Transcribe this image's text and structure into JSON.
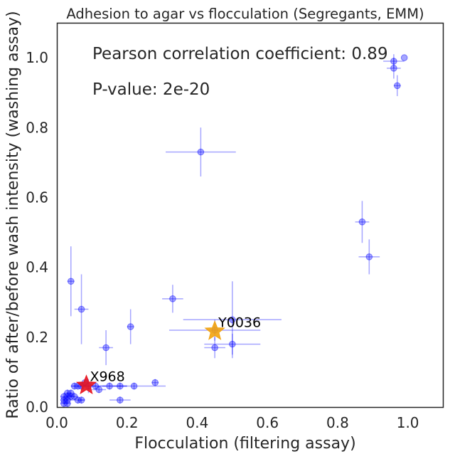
{
  "chart_data": {
    "type": "scatter",
    "title": "Adhesion to agar vs flocculation (Segregants, EMM)",
    "xlabel": "Flocculation (filtering assay)",
    "ylabel": "Ratio of after/before wash intensity (washing assay)",
    "xlim": [
      0,
      1.1
    ],
    "ylim": [
      0,
      1.1
    ],
    "xticks": [
      "0.0",
      "0.2",
      "0.4",
      "0.6",
      "0.8",
      "1.0"
    ],
    "yticks": [
      "0.0",
      "0.2",
      "0.4",
      "0.6",
      "0.8",
      "1.0"
    ],
    "grid": false,
    "annotations": {
      "pearson": "Pearson correlation coefficient: 0.89",
      "pvalue": "P-value: 2e-20"
    },
    "colors": {
      "points": "#0000ff",
      "highlight_x968": "#e8141f",
      "highlight_y0036": "#f2a30f"
    },
    "series": [
      {
        "points": [
          {
            "x": 0.99,
            "y": 1.0,
            "xerr": 0,
            "yerr": 0
          },
          {
            "x": 0.96,
            "y": 0.99,
            "xerr": 0.03,
            "yerr": 0.02
          },
          {
            "x": 0.96,
            "y": 0.97,
            "xerr": 0.02,
            "yerr": 0.03
          },
          {
            "x": 0.97,
            "y": 0.92,
            "xerr": 0.01,
            "yerr": 0.03
          },
          {
            "x": 0.41,
            "y": 0.73,
            "xerr": 0.1,
            "yerr": 0.07
          },
          {
            "x": 0.87,
            "y": 0.53,
            "xerr": 0.02,
            "yerr": 0.06
          },
          {
            "x": 0.89,
            "y": 0.43,
            "xerr": 0.03,
            "yerr": 0.05
          },
          {
            "x": 0.04,
            "y": 0.36,
            "xerr": 0.01,
            "yerr": 0.1
          },
          {
            "x": 0.33,
            "y": 0.31,
            "xerr": 0.03,
            "yerr": 0.04
          },
          {
            "x": 0.07,
            "y": 0.28,
            "xerr": 0.02,
            "yerr": 0.1
          },
          {
            "x": 0.5,
            "y": 0.25,
            "xerr": 0.14,
            "yerr": 0.11
          },
          {
            "x": 0.21,
            "y": 0.23,
            "xerr": 0.01,
            "yerr": 0.05
          },
          {
            "x": 0.14,
            "y": 0.17,
            "xerr": 0.02,
            "yerr": 0.05
          },
          {
            "x": 0.45,
            "y": 0.17,
            "xerr": 0.03,
            "yerr": 0.03
          },
          {
            "x": 0.5,
            "y": 0.18,
            "xerr": 0.08,
            "yerr": 0.03
          },
          {
            "x": 0.45,
            "y": 0.22,
            "xerr": 0.13,
            "yerr": 0.03
          },
          {
            "x": 0.28,
            "y": 0.07,
            "xerr": 0.01,
            "yerr": 0.01
          },
          {
            "x": 0.22,
            "y": 0.06,
            "xerr": 0.09,
            "yerr": 0.01
          },
          {
            "x": 0.18,
            "y": 0.02,
            "xerr": 0.03,
            "yerr": 0.01
          },
          {
            "x": 0.15,
            "y": 0.06,
            "xerr": 0.05,
            "yerr": 0.01
          },
          {
            "x": 0.18,
            "y": 0.06,
            "xerr": 0.02,
            "yerr": 0.01
          },
          {
            "x": 0.11,
            "y": 0.06,
            "xerr": 0.03,
            "yerr": 0.01
          },
          {
            "x": 0.12,
            "y": 0.05,
            "xerr": 0.02,
            "yerr": 0.01
          },
          {
            "x": 0.09,
            "y": 0.06,
            "xerr": 0.02,
            "yerr": 0.02
          },
          {
            "x": 0.08,
            "y": 0.07,
            "xerr": 0.02,
            "yerr": 0.01
          },
          {
            "x": 0.07,
            "y": 0.06,
            "xerr": 0.01,
            "yerr": 0.01
          },
          {
            "x": 0.06,
            "y": 0.06,
            "xerr": 0.02,
            "yerr": 0.01
          },
          {
            "x": 0.05,
            "y": 0.06,
            "xerr": 0.01,
            "yerr": 0.01
          },
          {
            "x": 0.07,
            "y": 0.02,
            "xerr": 0.01,
            "yerr": 0.01
          },
          {
            "x": 0.06,
            "y": 0.02,
            "xerr": 0.02,
            "yerr": 0.01
          },
          {
            "x": 0.05,
            "y": 0.03,
            "xerr": 0.01,
            "yerr": 0.01
          },
          {
            "x": 0.04,
            "y": 0.04,
            "xerr": 0.01,
            "yerr": 0.01
          },
          {
            "x": 0.03,
            "y": 0.03,
            "xerr": 0.01,
            "yerr": 0.01
          },
          {
            "x": 0.03,
            "y": 0.02,
            "xerr": 0.01,
            "yerr": 0.01
          },
          {
            "x": 0.02,
            "y": 0.01,
            "xerr": 0.01,
            "yerr": 0.01
          },
          {
            "x": 0.02,
            "y": 0.02,
            "xerr": 0.01,
            "yerr": 0.01
          },
          {
            "x": 0.03,
            "y": 0.01,
            "xerr": 0.01,
            "yerr": 0.01
          },
          {
            "x": 0.02,
            "y": 0.03,
            "xerr": 0.01,
            "yerr": 0.01
          },
          {
            "x": 0.04,
            "y": 0.03,
            "xerr": 0.01,
            "yerr": 0.01
          },
          {
            "x": 0.03,
            "y": 0.04,
            "xerr": 0.01,
            "yerr": 0.01
          }
        ]
      }
    ],
    "highlights": [
      {
        "label": "X968",
        "x": 0.084,
        "y": 0.062,
        "color": "#e8141f"
      },
      {
        "label": "Y0036",
        "x": 0.45,
        "y": 0.217,
        "color": "#f2a30f"
      }
    ]
  }
}
